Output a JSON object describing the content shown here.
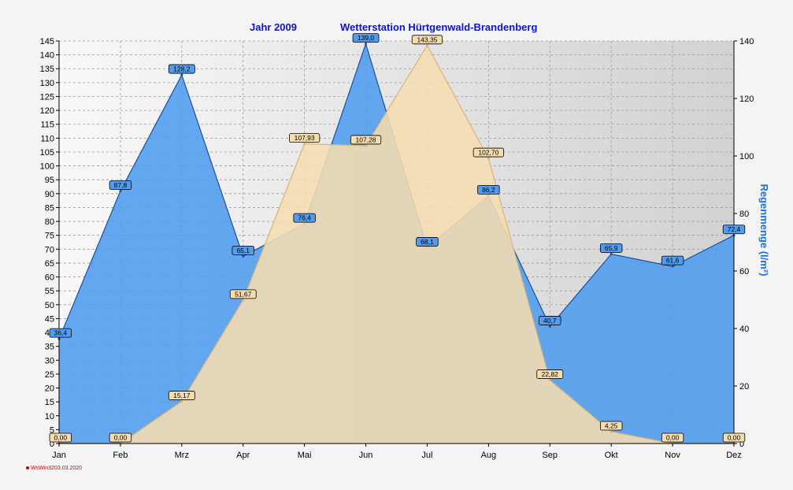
{
  "header": {
    "year_label": "Jahr  2009",
    "station": "Wetterstation Hürtgenwald-Brandenberg"
  },
  "footer": {
    "software": "WsWin32",
    "date": "03.03.2020"
  },
  "chart_data": {
    "type": "area",
    "categories": [
      "Jan",
      "Feb",
      "Mrz",
      "Apr",
      "Mai",
      "Jun",
      "Jul",
      "Aug",
      "Sep",
      "Okt",
      "Nov",
      "Dez"
    ],
    "ylabel_right": "Regenmenge  (l/m²)",
    "ylim_left": [
      0,
      145
    ],
    "ylim_right": [
      0,
      140
    ],
    "left_ticks": [
      0,
      5,
      10,
      15,
      20,
      25,
      30,
      35,
      40,
      45,
      50,
      55,
      60,
      65,
      70,
      75,
      80,
      85,
      90,
      95,
      100,
      105,
      110,
      115,
      120,
      125,
      130,
      135,
      140,
      145
    ],
    "right_ticks": [
      0,
      20,
      40,
      60,
      80,
      100,
      120,
      140
    ],
    "grid": true,
    "series": [
      {
        "axis": "right",
        "color": "#4f9cf0",
        "edge": "#1b4f9c",
        "values": [
          36.4,
          87.8,
          128.2,
          65.1,
          76.4,
          139.0,
          68.1,
          86.2,
          40.7,
          65.9,
          61.6,
          72.4
        ],
        "labels": [
          "36,4",
          "87,8",
          "128,2",
          "65,1",
          "76,4",
          "139,0",
          "68,1",
          "86,2",
          "40,7",
          "65,9",
          "61,6",
          "72,4"
        ]
      },
      {
        "axis": "left",
        "color": "#f5ddb0",
        "edge": "#d8b574",
        "values": [
          0.0,
          0.0,
          15.17,
          51.67,
          107.93,
          107.28,
          143.35,
          102.7,
          22.82,
          4.25,
          0.0,
          0.0
        ],
        "labels": [
          "0,00",
          "0,00",
          "15,17",
          "51,67",
          "107,93",
          "107,28",
          "143,35",
          "102,70",
          "22,82",
          "4,25",
          "0,00",
          "0,00"
        ]
      }
    ]
  }
}
